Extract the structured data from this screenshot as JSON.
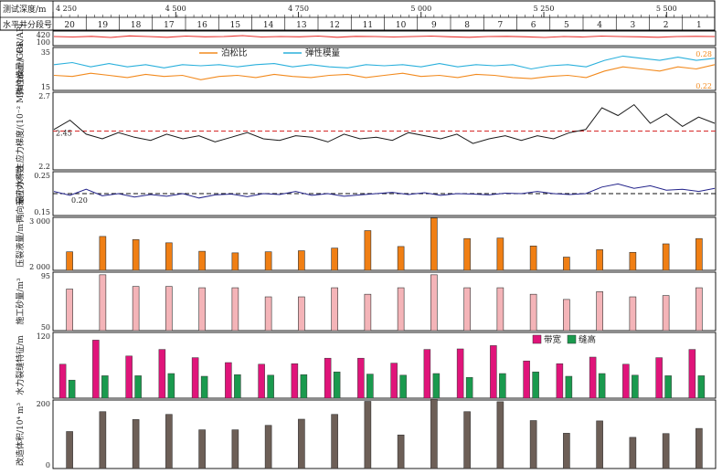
{
  "header": {
    "depth_label": "测试深度/m",
    "segment_label": "水平井分段号",
    "depth_ticks": [
      "4 250",
      "4 500",
      "4 750",
      "5 000",
      "5 250",
      "5 500"
    ],
    "segments": [
      "20",
      "19",
      "18",
      "17",
      "16",
      "15",
      "14",
      "13",
      "12",
      "11",
      "10",
      "9",
      "8",
      "7",
      "6",
      "5",
      "4",
      "3",
      "2",
      "1"
    ]
  },
  "colors": {
    "gr": "#e8312d",
    "poisson": "#f28a1e",
    "elastic": "#2ab0dc",
    "stress": "#1a1a1a",
    "coef": "#23238a",
    "ref": "#d62728",
    "fluid": "#f07f14",
    "sand": "#f4b4b8",
    "width": "#e0147a",
    "height": "#1a9a4e",
    "volume": "#6d5f57"
  },
  "chart_data": [
    {
      "type": "line",
      "id": "gr",
      "ylabel": "GR/API",
      "ticks": [
        "420",
        "100"
      ],
      "ylim": [
        100,
        420
      ],
      "series": [
        {
          "color_key": "gr",
          "approx": true,
          "y_points": [
            300,
            290,
            305,
            280,
            315,
            300,
            285,
            310,
            295,
            300,
            320,
            290,
            300,
            295,
            310,
            285,
            305,
            300,
            290,
            300,
            310,
            295,
            285,
            300,
            305,
            295,
            280,
            300,
            290,
            310,
            300,
            295,
            285,
            300,
            305,
            300
          ]
        }
      ]
    },
    {
      "type": "line",
      "id": "elastic_poisson",
      "ylabel": "弹性模量/GPa",
      "ticks": [
        "35",
        "15"
      ],
      "ylim": [
        15,
        35
      ],
      "legend": [
        "泊松比",
        "弹性模量"
      ],
      "right_ticks": [
        "0.28",
        "0.22"
      ],
      "series": [
        {
          "name": "弹性模量",
          "color_key": "elastic",
          "approx": true,
          "y_points": [
            27,
            28,
            26,
            27.5,
            26,
            27,
            25.5,
            27,
            26.5,
            27,
            26,
            27,
            27.5,
            26,
            27,
            26,
            25.5,
            27,
            26.5,
            27,
            26,
            27.5,
            26,
            27,
            26.5,
            27,
            25,
            26.5,
            27,
            26,
            29,
            31,
            30,
            29,
            30.5,
            29,
            30
          ]
        },
        {
          "name": "泊松比",
          "color_key": "poisson",
          "approx": true,
          "y_points": [
            22,
            21.5,
            23,
            22,
            21,
            22.5,
            21.5,
            22,
            20,
            21.5,
            22,
            21,
            22.5,
            21.5,
            21,
            22,
            22.5,
            21,
            22,
            23,
            21.5,
            22,
            21,
            22.5,
            22,
            21,
            20.5,
            21.5,
            22,
            21,
            24,
            26,
            25,
            24,
            26,
            25,
            27
          ]
        }
      ]
    },
    {
      "type": "line",
      "id": "min_stress",
      "ylabel": "最小水平主应力梯度/(10⁻² MPa·hm⁻¹)",
      "ticks": [
        "2.7",
        "2.2"
      ],
      "ylim": [
        2.2,
        2.7
      ],
      "ref_value": 2.45,
      "ref_label": "2.45",
      "series": [
        {
          "color_key": "stress",
          "approx": true,
          "y_points": [
            2.46,
            2.52,
            2.43,
            2.4,
            2.44,
            2.41,
            2.39,
            2.43,
            2.4,
            2.42,
            2.38,
            2.41,
            2.44,
            2.4,
            2.39,
            2.42,
            2.41,
            2.38,
            2.43,
            2.4,
            2.41,
            2.39,
            2.44,
            2.42,
            2.4,
            2.43,
            2.37,
            2.4,
            2.42,
            2.39,
            2.42,
            2.4,
            2.44,
            2.46,
            2.6,
            2.55,
            2.62,
            2.5,
            2.56,
            2.48,
            2.54,
            2.5
          ]
        }
      ]
    },
    {
      "type": "line",
      "id": "coef",
      "ylabel": "两向差应力系数",
      "ticks": [
        "0.25",
        "0.15"
      ],
      "ylim": [
        0.15,
        0.25
      ],
      "ref_value": 0.2,
      "ref_label": "0.20",
      "series": [
        {
          "color_key": "coef",
          "approx": true,
          "y_points": [
            0.205,
            0.196,
            0.21,
            0.195,
            0.2,
            0.192,
            0.198,
            0.194,
            0.2,
            0.19,
            0.197,
            0.199,
            0.193,
            0.2,
            0.198,
            0.205,
            0.196,
            0.2,
            0.194,
            0.197,
            0.2,
            0.203,
            0.198,
            0.202,
            0.196,
            0.2,
            0.199,
            0.197,
            0.201,
            0.2,
            0.205,
            0.2,
            0.198,
            0.2,
            0.215,
            0.222,
            0.212,
            0.218,
            0.208,
            0.21,
            0.205,
            0.212
          ]
        }
      ]
    },
    {
      "type": "bar",
      "id": "fluid",
      "ylabel": "压裂液量/m³",
      "ticks": [
        "3 000",
        "2 000"
      ],
      "ylim": [
        2000,
        3000
      ],
      "categories": [
        "20",
        "19",
        "18",
        "17",
        "16",
        "15",
        "14",
        "13",
        "12",
        "11",
        "10",
        "9",
        "8",
        "7",
        "6",
        "5",
        "4",
        "3",
        "2",
        "1"
      ],
      "values": [
        2350,
        2640,
        2580,
        2520,
        2360,
        2330,
        2350,
        2370,
        2420,
        2750,
        2450,
        2990,
        2600,
        2610,
        2460,
        2250,
        2390,
        2340,
        2500,
        2600
      ]
    },
    {
      "type": "bar",
      "id": "sand",
      "ylabel": "施工砂量/m³",
      "ticks": [
        "95",
        "50"
      ],
      "ylim": [
        50,
        95
      ],
      "categories": [
        "20",
        "19",
        "18",
        "17",
        "16",
        "15",
        "14",
        "13",
        "12",
        "11",
        "10",
        "9",
        "8",
        "7",
        "6",
        "5",
        "4",
        "3",
        "2",
        "1"
      ],
      "values": [
        82,
        93,
        84,
        84,
        83,
        83,
        76,
        76,
        83,
        78,
        83,
        93,
        83,
        83,
        78,
        74,
        80,
        76,
        77,
        83
      ]
    },
    {
      "type": "bar",
      "id": "fracture",
      "ylabel": "水力裂缝特征/m",
      "ticks": [
        "120"
      ],
      "ylim": [
        0,
        120
      ],
      "legend": [
        "带宽",
        "缝高"
      ],
      "categories": [
        "20",
        "19",
        "18",
        "17",
        "16",
        "15",
        "14",
        "13",
        "12",
        "11",
        "10",
        "9",
        "8",
        "7",
        "6",
        "5",
        "4",
        "3",
        "2",
        "1"
      ],
      "series": [
        {
          "name": "带宽",
          "color_key": "width",
          "values": [
            62,
            106,
            77,
            89,
            74,
            65,
            62,
            63,
            73,
            73,
            64,
            89,
            90,
            96,
            68,
            63,
            75,
            62,
            74,
            89
          ]
        },
        {
          "name": "缝高",
          "color_key": "height",
          "values": [
            33,
            41,
            41,
            45,
            40,
            43,
            42,
            43,
            48,
            44,
            42,
            45,
            38,
            45,
            48,
            40,
            45,
            42,
            41,
            41
          ]
        }
      ]
    },
    {
      "type": "bar",
      "id": "volume",
      "ylabel": "改造体积/10⁴ m³",
      "ticks": [
        "200",
        "0"
      ],
      "ylim": [
        0,
        200
      ],
      "categories": [
        "20",
        "19",
        "18",
        "17",
        "16",
        "15",
        "14",
        "13",
        "12",
        "11",
        "10",
        "9",
        "8",
        "7",
        "6",
        "5",
        "4",
        "3",
        "2",
        "1"
      ],
      "values": [
        108,
        166,
        143,
        158,
        113,
        113,
        126,
        144,
        158,
        196,
        98,
        202,
        166,
        195,
        140,
        103,
        139,
        91,
        102,
        117
      ]
    }
  ]
}
